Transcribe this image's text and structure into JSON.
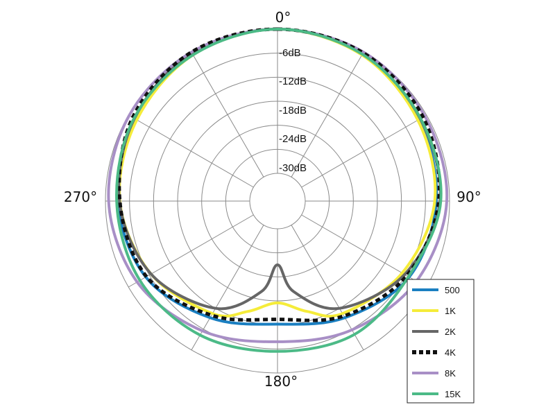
{
  "chart_data": {
    "type": "polar",
    "title": "",
    "angle_labels": [
      {
        "deg": 0,
        "text": "0°"
      },
      {
        "deg": 90,
        "text": "90°"
      },
      {
        "deg": 180,
        "text": "180°"
      },
      {
        "deg": 270,
        "text": "270°"
      }
    ],
    "ring_labels": [
      "-6dB",
      "-12dB",
      "-18dB",
      "-24dB",
      "-30dB"
    ],
    "rings_db": [
      0,
      -6,
      -12,
      -18,
      -24,
      -30
    ],
    "r_range_db": [
      -36,
      0
    ],
    "spoke_step_deg": 30,
    "legend_placement": "bottom-right",
    "series": [
      {
        "name": "500",
        "color": "#1a7fc1",
        "dashed": false,
        "points": [
          [
            0,
            0
          ],
          [
            30,
            -0.7
          ],
          [
            60,
            -2.2
          ],
          [
            90,
            -3.3
          ],
          [
            120,
            -5.0
          ],
          [
            150,
            -9.3
          ],
          [
            180,
            -12.2
          ],
          [
            210,
            -9.3
          ],
          [
            240,
            -5.0
          ],
          [
            270,
            -3.1
          ],
          [
            300,
            -2.0
          ],
          [
            330,
            -0.6
          ]
        ]
      },
      {
        "name": "1K",
        "color": "#f5ec3a",
        "dashed": false,
        "points": [
          [
            0,
            0
          ],
          [
            30,
            -0.8
          ],
          [
            60,
            -2.5
          ],
          [
            90,
            -3.7
          ],
          [
            120,
            -7.0
          ],
          [
            150,
            -10.5
          ],
          [
            165,
            -14.4
          ],
          [
            180,
            -17.5
          ],
          [
            195,
            -14.4
          ],
          [
            210,
            -10.5
          ],
          [
            240,
            -6.5
          ],
          [
            270,
            -3.6
          ],
          [
            300,
            -2.4
          ],
          [
            330,
            -0.8
          ]
        ]
      },
      {
        "name": "2K",
        "color": "#666666",
        "dashed": false,
        "points": [
          [
            0,
            0
          ],
          [
            30,
            -0.5
          ],
          [
            60,
            -1.8
          ],
          [
            90,
            -2.4
          ],
          [
            120,
            -6.3
          ],
          [
            150,
            -12.0
          ],
          [
            170,
            -20.0
          ],
          [
            180,
            -27.0
          ],
          [
            190,
            -20.0
          ],
          [
            210,
            -12.0
          ],
          [
            240,
            -6.5
          ],
          [
            270,
            -3.5
          ],
          [
            300,
            -1.7
          ],
          [
            330,
            -0.3
          ]
        ]
      },
      {
        "name": "4K",
        "color": "#111111",
        "dashed": true,
        "points": [
          [
            0,
            0
          ],
          [
            30,
            -0.2
          ],
          [
            60,
            -1.0
          ],
          [
            90,
            -2.7
          ],
          [
            120,
            -5.7
          ],
          [
            150,
            -9.8
          ],
          [
            180,
            -13.4
          ],
          [
            210,
            -10.0
          ],
          [
            240,
            -5.2
          ],
          [
            270,
            -3.6
          ],
          [
            300,
            -1.2
          ],
          [
            330,
            0
          ]
        ]
      },
      {
        "name": "8K",
        "color": "#a88fc6",
        "dashed": false,
        "points": [
          [
            0,
            0
          ],
          [
            30,
            0
          ],
          [
            60,
            -0.5
          ],
          [
            90,
            -0.7
          ],
          [
            120,
            -2.9
          ],
          [
            150,
            -5.8
          ],
          [
            180,
            -7.8
          ],
          [
            210,
            -5.5
          ],
          [
            240,
            -2.5
          ],
          [
            270,
            -0.8
          ],
          [
            300,
            -0.2
          ],
          [
            330,
            0
          ]
        ]
      },
      {
        "name": "15K",
        "color": "#4cba87",
        "dashed": false,
        "points": [
          [
            0,
            0
          ],
          [
            30,
            -0.6
          ],
          [
            60,
            -1.7
          ],
          [
            90,
            -2.2
          ],
          [
            120,
            -5.2
          ],
          [
            150,
            -4.5
          ],
          [
            180,
            -5.4
          ],
          [
            210,
            -4.3
          ],
          [
            240,
            -3.3
          ],
          [
            270,
            -2.8
          ],
          [
            300,
            -1.6
          ],
          [
            330,
            -0.8
          ]
        ]
      }
    ]
  }
}
